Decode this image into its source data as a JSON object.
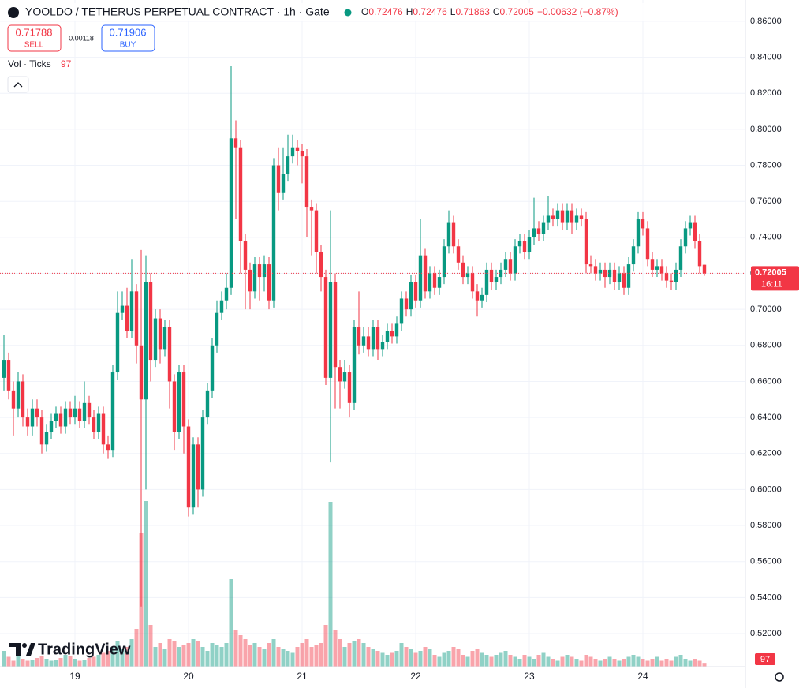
{
  "chart_data": {
    "type": "candlestick",
    "title": "YOOLDO / TETHERUS PERPETUAL CONTRACT · 1h · Gate",
    "ohlc_letters": [
      "O",
      "H",
      "L",
      "C"
    ],
    "change": "−0.00632 (−0.87%)",
    "sell": {
      "price": 0.71788,
      "label": "SELL"
    },
    "spread": 0.00118,
    "buy": {
      "price": 0.71906,
      "label": "BUY"
    },
    "volume_label": "Vol · Ticks",
    "countdown": "16:11",
    "logo": "TradingView",
    "up_color": "#089981",
    "down_color": "#f23645",
    "grid": true,
    "categories": [
      null,
      null,
      null,
      null,
      null,
      null,
      null,
      null,
      null,
      null,
      null,
      null,
      null,
      null,
      null,
      "19",
      null,
      null,
      null,
      null,
      null,
      null,
      null,
      null,
      null,
      null,
      null,
      null,
      null,
      null,
      null,
      null,
      null,
      null,
      null,
      null,
      null,
      null,
      null,
      "20",
      null,
      null,
      null,
      null,
      null,
      null,
      null,
      null,
      null,
      null,
      null,
      null,
      null,
      null,
      null,
      null,
      null,
      null,
      null,
      null,
      null,
      null,
      null,
      "21",
      null,
      null,
      null,
      null,
      null,
      null,
      null,
      null,
      null,
      null,
      null,
      null,
      null,
      null,
      null,
      null,
      null,
      null,
      null,
      null,
      null,
      null,
      null,
      "22",
      null,
      null,
      null,
      null,
      null,
      null,
      null,
      null,
      null,
      null,
      null,
      null,
      null,
      null,
      null,
      null,
      null,
      null,
      null,
      null,
      null,
      null,
      null,
      "23",
      null,
      null,
      null,
      null,
      null,
      null,
      null,
      null,
      null,
      null,
      null,
      null,
      null,
      null,
      null,
      null,
      null,
      null,
      null,
      null,
      null,
      null,
      null,
      "24",
      null,
      null,
      null,
      null,
      null,
      null,
      null,
      null,
      null,
      null,
      null,
      null,
      null
    ],
    "open": [
      0.662,
      0.672,
      0.655,
      0.645,
      0.66,
      0.64,
      0.635,
      0.645,
      0.64,
      0.625,
      0.632,
      0.638,
      0.642,
      0.635,
      0.645,
      0.64,
      0.645,
      0.638,
      0.648,
      0.64,
      0.632,
      0.642,
      0.625,
      0.622,
      0.665,
      0.698,
      0.702,
      0.688,
      0.71,
      0.68,
      0.65,
      0.715,
      0.672,
      0.695,
      0.678,
      0.69,
      0.66,
      0.632,
      0.665,
      0.635,
      0.59,
      0.625,
      0.6,
      0.64,
      0.655,
      0.68,
      0.698,
      0.705,
      0.712,
      0.795,
      0.79,
      0.738,
      0.722,
      0.71,
      0.725,
      0.718,
      0.725,
      0.705,
      0.78,
      0.765,
      0.775,
      0.785,
      0.79,
      0.788,
      0.785,
      0.757,
      0.755,
      0.732,
      0.718,
      0.662,
      0.715,
      0.668,
      0.66,
      0.665,
      0.648,
      0.69,
      0.68,
      0.685,
      0.678,
      0.69,
      0.678,
      0.682,
      0.688,
      0.685,
      0.692,
      0.706,
      0.7,
      0.715,
      0.705,
      0.73,
      0.71,
      0.72,
      0.712,
      0.718,
      0.735,
      0.748,
      0.735,
      0.726,
      0.718,
      0.72,
      0.71,
      0.705,
      0.708,
      0.722,
      0.715,
      0.718,
      0.722,
      0.728,
      0.72,
      0.735,
      0.738,
      0.732,
      0.74,
      0.745,
      0.742,
      0.748,
      0.752,
      0.75,
      0.755,
      0.748,
      0.755,
      0.748,
      0.752,
      0.75,
      0.725,
      0.724,
      0.72,
      0.722,
      0.718,
      0.722,
      0.715,
      0.72,
      0.712,
      0.725,
      0.735,
      0.75,
      0.745,
      0.728,
      0.722,
      0.724,
      0.72,
      0.716,
      0.715,
      0.722,
      0.735,
      0.745,
      0.748,
      0.738,
      0.72476
    ],
    "high": [
      0.686,
      0.676,
      0.66,
      0.665,
      0.664,
      0.645,
      0.65,
      0.65,
      0.644,
      0.636,
      0.642,
      0.646,
      0.646,
      0.649,
      0.649,
      0.652,
      0.649,
      0.66,
      0.652,
      0.644,
      0.646,
      0.646,
      0.63,
      0.669,
      0.71,
      0.71,
      0.712,
      0.728,
      0.714,
      0.733,
      0.73,
      0.72,
      0.7,
      0.7,
      0.694,
      0.694,
      0.664,
      0.669,
      0.669,
      0.639,
      0.629,
      0.629,
      0.644,
      0.659,
      0.684,
      0.705,
      0.71,
      0.72,
      0.835,
      0.805,
      0.794,
      0.742,
      0.726,
      0.729,
      0.729,
      0.73,
      0.729,
      0.784,
      0.79,
      0.79,
      0.797,
      0.797,
      0.794,
      0.792,
      0.789,
      0.761,
      0.759,
      0.736,
      0.722,
      0.755,
      0.72,
      0.672,
      0.672,
      0.669,
      0.694,
      0.71,
      0.69,
      0.69,
      0.694,
      0.694,
      0.686,
      0.692,
      0.692,
      0.696,
      0.71,
      0.71,
      0.719,
      0.719,
      0.75,
      0.734,
      0.724,
      0.724,
      0.722,
      0.739,
      0.755,
      0.752,
      0.739,
      0.73,
      0.724,
      0.724,
      0.714,
      0.712,
      0.726,
      0.726,
      0.722,
      0.726,
      0.732,
      0.732,
      0.739,
      0.742,
      0.742,
      0.744,
      0.762,
      0.749,
      0.752,
      0.763,
      0.756,
      0.759,
      0.759,
      0.759,
      0.759,
      0.756,
      0.756,
      0.754,
      0.73,
      0.728,
      0.726,
      0.726,
      0.726,
      0.726,
      0.724,
      0.724,
      0.729,
      0.739,
      0.754,
      0.754,
      0.749,
      0.732,
      0.728,
      0.728,
      0.724,
      0.72,
      0.726,
      0.739,
      0.749,
      0.752,
      0.752,
      0.742,
      0.72476
    ],
    "low": [
      0.655,
      0.65,
      0.63,
      0.64,
      0.635,
      0.63,
      0.63,
      0.635,
      0.62,
      0.621,
      0.628,
      0.634,
      0.631,
      0.631,
      0.636,
      0.636,
      0.634,
      0.634,
      0.636,
      0.628,
      0.628,
      0.62,
      0.617,
      0.618,
      0.661,
      0.694,
      0.684,
      0.684,
      0.67,
      0.535,
      0.6,
      0.66,
      0.668,
      0.67,
      0.674,
      0.645,
      0.622,
      0.628,
      0.62,
      0.585,
      0.586,
      0.59,
      0.596,
      0.636,
      0.651,
      0.676,
      0.694,
      0.7,
      0.708,
      0.75,
      0.72,
      0.7,
      0.7,
      0.706,
      0.705,
      0.71,
      0.7,
      0.701,
      0.755,
      0.761,
      0.771,
      0.781,
      0.78,
      0.77,
      0.74,
      0.73,
      0.72,
      0.71,
      0.658,
      0.615,
      0.645,
      0.645,
      0.656,
      0.64,
      0.644,
      0.675,
      0.676,
      0.674,
      0.674,
      0.672,
      0.674,
      0.678,
      0.681,
      0.681,
      0.688,
      0.696,
      0.696,
      0.701,
      0.701,
      0.706,
      0.706,
      0.708,
      0.708,
      0.714,
      0.731,
      0.731,
      0.722,
      0.714,
      0.714,
      0.706,
      0.696,
      0.701,
      0.704,
      0.711,
      0.711,
      0.714,
      0.718,
      0.716,
      0.716,
      0.731,
      0.728,
      0.728,
      0.736,
      0.738,
      0.738,
      0.744,
      0.746,
      0.746,
      0.744,
      0.744,
      0.742,
      0.744,
      0.746,
      0.72,
      0.72,
      0.716,
      0.716,
      0.712,
      0.714,
      0.711,
      0.711,
      0.708,
      0.708,
      0.721,
      0.731,
      0.741,
      0.724,
      0.718,
      0.718,
      0.716,
      0.712,
      0.711,
      0.711,
      0.718,
      0.731,
      0.741,
      0.734,
      0.72,
      0.71863
    ],
    "close": [
      0.672,
      0.655,
      0.645,
      0.66,
      0.64,
      0.635,
      0.645,
      0.64,
      0.625,
      0.632,
      0.638,
      0.642,
      0.635,
      0.645,
      0.64,
      0.645,
      0.638,
      0.648,
      0.64,
      0.632,
      0.642,
      0.625,
      0.622,
      0.665,
      0.698,
      0.702,
      0.688,
      0.71,
      0.68,
      0.65,
      0.715,
      0.672,
      0.695,
      0.678,
      0.69,
      0.66,
      0.632,
      0.665,
      0.635,
      0.59,
      0.625,
      0.6,
      0.64,
      0.655,
      0.68,
      0.698,
      0.705,
      0.712,
      0.795,
      0.79,
      0.738,
      0.722,
      0.71,
      0.725,
      0.718,
      0.725,
      0.705,
      0.78,
      0.765,
      0.775,
      0.785,
      0.79,
      0.788,
      0.785,
      0.757,
      0.755,
      0.732,
      0.718,
      0.662,
      0.715,
      0.668,
      0.66,
      0.665,
      0.648,
      0.69,
      0.68,
      0.685,
      0.678,
      0.69,
      0.678,
      0.682,
      0.688,
      0.685,
      0.692,
      0.706,
      0.7,
      0.715,
      0.705,
      0.73,
      0.71,
      0.72,
      0.712,
      0.718,
      0.735,
      0.748,
      0.735,
      0.726,
      0.718,
      0.72,
      0.71,
      0.705,
      0.708,
      0.722,
      0.715,
      0.718,
      0.722,
      0.728,
      0.72,
      0.735,
      0.738,
      0.732,
      0.74,
      0.745,
      0.742,
      0.748,
      0.752,
      0.75,
      0.755,
      0.748,
      0.755,
      0.748,
      0.752,
      0.75,
      0.725,
      0.724,
      0.72,
      0.722,
      0.718,
      0.722,
      0.715,
      0.72,
      0.712,
      0.725,
      0.735,
      0.75,
      0.745,
      0.728,
      0.722,
      0.724,
      0.72,
      0.716,
      0.715,
      0.722,
      0.735,
      0.745,
      0.748,
      0.738,
      0.724,
      0.72005
    ],
    "volume": [
      400,
      250,
      150,
      300,
      200,
      150,
      180,
      220,
      260,
      200,
      150,
      180,
      220,
      300,
      260,
      200,
      150,
      180,
      220,
      250,
      300,
      350,
      400,
      500,
      650,
      450,
      500,
      700,
      960,
      3400,
      4200,
      1060,
      500,
      600,
      450,
      700,
      650,
      500,
      550,
      600,
      700,
      650,
      500,
      400,
      600,
      550,
      500,
      600,
      2220,
      920,
      800,
      700,
      550,
      600,
      500,
      450,
      600,
      700,
      500,
      450,
      400,
      350,
      500,
      600,
      700,
      500,
      550,
      600,
      1060,
      4180,
      920,
      700,
      500,
      600,
      650,
      700,
      600,
      500,
      450,
      400,
      350,
      300,
      350,
      400,
      600,
      500,
      450,
      350,
      400,
      500,
      450,
      300,
      250,
      350,
      400,
      500,
      450,
      300,
      250,
      400,
      450,
      350,
      300,
      250,
      300,
      350,
      400,
      300,
      250,
      200,
      300,
      250,
      200,
      300,
      350,
      250,
      200,
      150,
      250,
      300,
      250,
      200,
      150,
      300,
      250,
      200,
      150,
      200,
      250,
      200,
      150,
      200,
      250,
      300,
      250,
      200,
      150,
      200,
      250,
      150,
      200,
      150,
      250,
      300,
      200,
      150,
      200,
      150,
      97
    ],
    "ylim": [
      0.5016,
      0.8718
    ],
    "yticks": [
      {
        "value": 0.52,
        "label": "0.52000"
      },
      {
        "value": 0.54,
        "label": "0.54000"
      },
      {
        "value": 0.56,
        "label": "0.56000"
      },
      {
        "value": 0.58,
        "label": "0.58000"
      },
      {
        "value": 0.6,
        "label": "0.60000"
      },
      {
        "value": 0.62,
        "label": "0.62000"
      },
      {
        "value": 0.64,
        "label": "0.64000"
      },
      {
        "value": 0.66,
        "label": "0.66000"
      },
      {
        "value": 0.68,
        "label": "0.68000"
      },
      {
        "value": 0.7,
        "label": "0.70000"
      },
      {
        "value": 0.72,
        "label": "0.72000"
      },
      {
        "value": 0.74,
        "label": "0.74000"
      },
      {
        "value": 0.76,
        "label": "0.76000"
      },
      {
        "value": 0.78,
        "label": "0.78000"
      },
      {
        "value": 0.8,
        "label": "0.80000"
      },
      {
        "value": 0.82,
        "label": "0.82000"
      },
      {
        "value": 0.84,
        "label": "0.84000"
      },
      {
        "value": 0.86,
        "label": "0.86000"
      }
    ]
  }
}
